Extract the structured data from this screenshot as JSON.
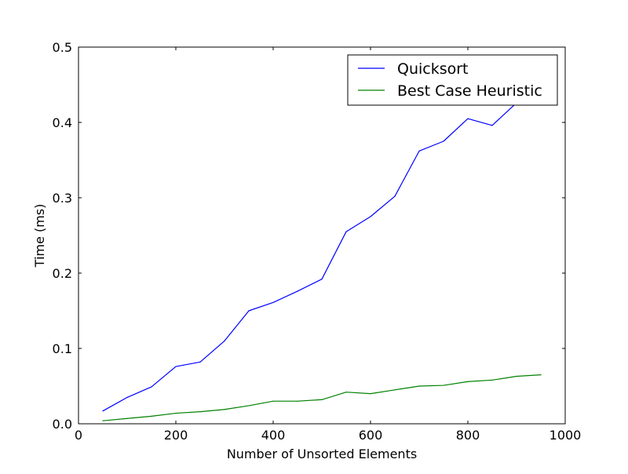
{
  "chart_data": {
    "type": "line",
    "title": "",
    "xlabel": "Number of Unsorted Elements",
    "ylabel": "Time (ms)",
    "xlim": [
      0,
      1000
    ],
    "ylim": [
      0,
      0.5
    ],
    "xticks": [
      0,
      200,
      400,
      600,
      800,
      1000
    ],
    "yticks": [
      0.0,
      0.1,
      0.2,
      0.3,
      0.4,
      0.5
    ],
    "xtick_labels": [
      "0",
      "200",
      "400",
      "600",
      "800",
      "1000"
    ],
    "ytick_labels": [
      "0.0",
      "0.1",
      "0.2",
      "0.3",
      "0.4",
      "0.5"
    ],
    "grid": false,
    "legend_position": "top-right",
    "x": [
      50,
      100,
      150,
      200,
      250,
      300,
      350,
      400,
      450,
      500,
      550,
      600,
      650,
      700,
      750,
      800,
      850,
      900,
      950
    ],
    "series": [
      {
        "name": "Quicksort",
        "color": "#0000ff",
        "values": [
          0.017,
          0.035,
          0.049,
          0.076,
          0.082,
          0.11,
          0.15,
          0.161,
          0.176,
          0.192,
          0.255,
          0.275,
          0.302,
          0.362,
          0.375,
          0.405,
          0.396,
          0.426,
          0.44
        ]
      },
      {
        "name": "Best Case Heuristic",
        "color": "#008000",
        "values": [
          0.004,
          0.007,
          0.01,
          0.014,
          0.016,
          0.019,
          0.024,
          0.03,
          0.03,
          0.032,
          0.042,
          0.04,
          0.045,
          0.05,
          0.051,
          0.056,
          0.058,
          0.063,
          0.065
        ]
      }
    ]
  }
}
